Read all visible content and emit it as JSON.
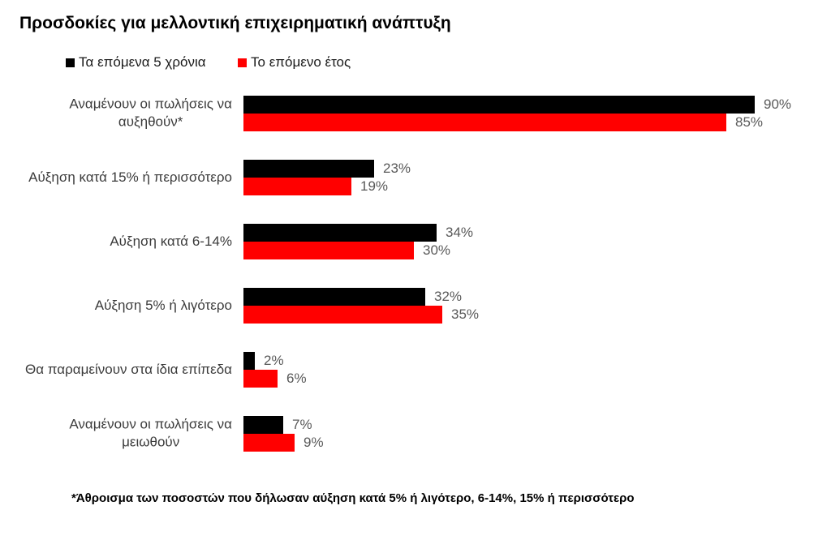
{
  "title": "Προσδοκίες για μελλοντική επιχειρηματική ανάπτυξη",
  "legend": {
    "items": [
      {
        "label": "Τα επόμενα 5 χρόνια",
        "color": "#000000"
      },
      {
        "label": "Το επόμενο έτος",
        "color": "#ff0000"
      }
    ]
  },
  "footnote": "*Άθροισμα των ποσοστών που δήλωσαν αύξηση κατά 5% ή λιγότερο, 6-14%, 15% ή περισσότερο",
  "chart_data": {
    "type": "bar",
    "orientation": "horizontal",
    "title": "Προσδοκίες για μελλοντική επιχειρηματική ανάπτυξη",
    "categories": [
      "Αναμένουν οι πωλήσεις να\nαυξηθούν*",
      "Αύξηση κατά 15% ή περισσότερο",
      "Αύξηση κατά 6-14%",
      "Αύξηση 5% ή λιγότερο",
      "Θα παραμείνουν στα ίδια επίπεδα",
      "Αναμένουν οι πωλήσεις να\nμειωθούν"
    ],
    "series": [
      {
        "name": "Τα επόμενα 5 χρόνια",
        "color": "#000000",
        "values": [
          90,
          23,
          34,
          32,
          2,
          7
        ]
      },
      {
        "name": "Το επόμενο έτος",
        "color": "#ff0000",
        "values": [
          85,
          19,
          30,
          35,
          6,
          9
        ]
      }
    ],
    "value_suffix": "%",
    "xlim": [
      0,
      100
    ],
    "grid": false,
    "axes_shown": false,
    "legend_position": "top-left",
    "value_label_color": "#595959"
  }
}
